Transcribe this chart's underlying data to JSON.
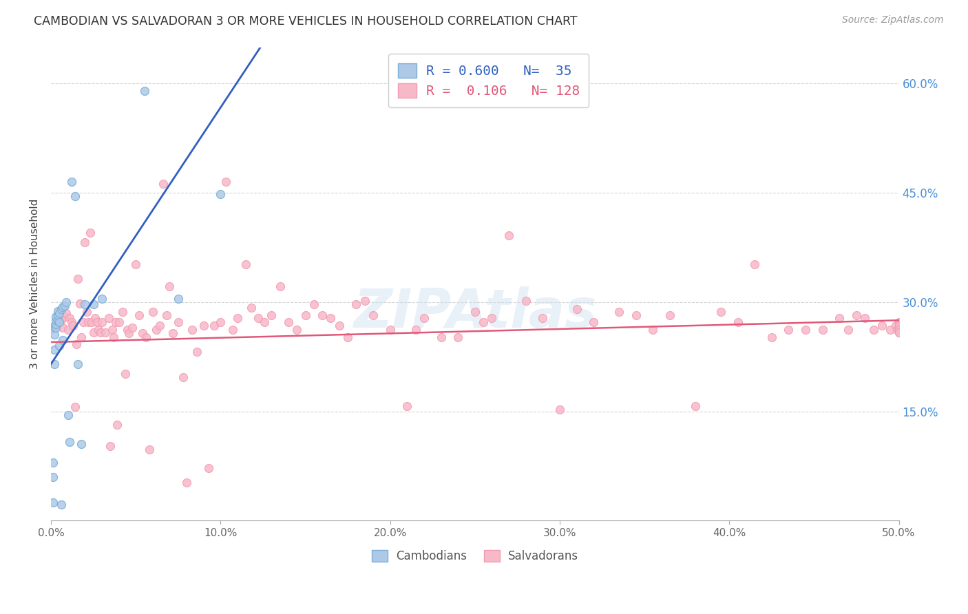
{
  "title": "CAMBODIAN VS SALVADORAN 3 OR MORE VEHICLES IN HOUSEHOLD CORRELATION CHART",
  "source": "Source: ZipAtlas.com",
  "ylabel": "3 or more Vehicles in Household",
  "x_min": 0.0,
  "x_max": 0.5,
  "y_min": 0.0,
  "y_max": 0.65,
  "x_ticks": [
    0.0,
    0.1,
    0.2,
    0.3,
    0.4,
    0.5
  ],
  "x_tick_labels": [
    "0.0%",
    "10.0%",
    "20.0%",
    "30.0%",
    "40.0%",
    "50.0%"
  ],
  "y_ticks": [
    0.15,
    0.3,
    0.45,
    0.6
  ],
  "y_tick_labels": [
    "15.0%",
    "30.0%",
    "45.0%",
    "60.0%"
  ],
  "cambodian_face_color": "#aec9e8",
  "cambodian_edge_color": "#7aaed4",
  "salvadoran_face_color": "#f7b8c8",
  "salvadoran_edge_color": "#f09ab0",
  "cambodian_line_color": "#3060c0",
  "salvadoran_line_color": "#e05878",
  "cambodian_R": 0.6,
  "cambodian_N": 35,
  "salvadoran_R": 0.106,
  "salvadoran_N": 128,
  "watermark": "ZIPAtlas",
  "marker_size": 75,
  "cambodian_x": [
    0.001,
    0.001,
    0.001,
    0.002,
    0.002,
    0.002,
    0.002,
    0.003,
    0.003,
    0.003,
    0.003,
    0.004,
    0.004,
    0.004,
    0.005,
    0.005,
    0.005,
    0.006,
    0.006,
    0.007,
    0.007,
    0.008,
    0.009,
    0.01,
    0.011,
    0.012,
    0.014,
    0.016,
    0.018,
    0.02,
    0.025,
    0.03,
    0.055,
    0.075,
    0.1
  ],
  "cambodian_y": [
    0.025,
    0.06,
    0.08,
    0.215,
    0.235,
    0.255,
    0.265,
    0.265,
    0.27,
    0.275,
    0.28,
    0.275,
    0.282,
    0.288,
    0.24,
    0.272,
    0.285,
    0.022,
    0.29,
    0.248,
    0.293,
    0.295,
    0.3,
    0.145,
    0.108,
    0.465,
    0.445,
    0.215,
    0.105,
    0.297,
    0.297,
    0.305,
    0.59,
    0.305,
    0.448
  ],
  "salvadoran_x": [
    0.002,
    0.004,
    0.006,
    0.007,
    0.008,
    0.009,
    0.01,
    0.011,
    0.012,
    0.013,
    0.014,
    0.015,
    0.016,
    0.017,
    0.018,
    0.019,
    0.02,
    0.021,
    0.022,
    0.023,
    0.024,
    0.025,
    0.026,
    0.027,
    0.028,
    0.029,
    0.03,
    0.032,
    0.034,
    0.035,
    0.036,
    0.037,
    0.038,
    0.039,
    0.04,
    0.042,
    0.044,
    0.045,
    0.046,
    0.048,
    0.05,
    0.052,
    0.054,
    0.056,
    0.058,
    0.06,
    0.062,
    0.064,
    0.066,
    0.068,
    0.07,
    0.072,
    0.075,
    0.078,
    0.08,
    0.083,
    0.086,
    0.09,
    0.093,
    0.096,
    0.1,
    0.103,
    0.107,
    0.11,
    0.115,
    0.118,
    0.122,
    0.126,
    0.13,
    0.135,
    0.14,
    0.145,
    0.15,
    0.155,
    0.16,
    0.165,
    0.17,
    0.175,
    0.18,
    0.185,
    0.19,
    0.2,
    0.21,
    0.215,
    0.22,
    0.23,
    0.24,
    0.25,
    0.255,
    0.26,
    0.27,
    0.28,
    0.29,
    0.3,
    0.31,
    0.32,
    0.335,
    0.345,
    0.355,
    0.365,
    0.38,
    0.395,
    0.405,
    0.415,
    0.425,
    0.435,
    0.445,
    0.455,
    0.465,
    0.47,
    0.475,
    0.48,
    0.485,
    0.49,
    0.495,
    0.498,
    0.499,
    0.5,
    0.5,
    0.5,
    0.5,
    0.5,
    0.5,
    0.5,
    0.5,
    0.5,
    0.5,
    0.5
  ],
  "salvadoran_y": [
    0.268,
    0.272,
    0.275,
    0.265,
    0.28,
    0.285,
    0.262,
    0.278,
    0.272,
    0.268,
    0.156,
    0.242,
    0.332,
    0.298,
    0.252,
    0.272,
    0.382,
    0.287,
    0.272,
    0.395,
    0.272,
    0.258,
    0.278,
    0.272,
    0.262,
    0.258,
    0.272,
    0.258,
    0.278,
    0.102,
    0.262,
    0.252,
    0.272,
    0.132,
    0.272,
    0.287,
    0.202,
    0.262,
    0.257,
    0.265,
    0.352,
    0.282,
    0.257,
    0.252,
    0.098,
    0.287,
    0.262,
    0.268,
    0.462,
    0.282,
    0.322,
    0.257,
    0.272,
    0.197,
    0.052,
    0.262,
    0.232,
    0.268,
    0.072,
    0.268,
    0.272,
    0.465,
    0.262,
    0.278,
    0.352,
    0.292,
    0.278,
    0.272,
    0.282,
    0.322,
    0.272,
    0.262,
    0.282,
    0.297,
    0.282,
    0.278,
    0.268,
    0.252,
    0.297,
    0.302,
    0.282,
    0.262,
    0.157,
    0.262,
    0.278,
    0.252,
    0.252,
    0.287,
    0.272,
    0.278,
    0.392,
    0.302,
    0.278,
    0.152,
    0.29,
    0.272,
    0.287,
    0.282,
    0.262,
    0.282,
    0.157,
    0.287,
    0.272,
    0.352,
    0.252,
    0.262,
    0.262,
    0.262,
    0.278,
    0.262,
    0.282,
    0.278,
    0.262,
    0.268,
    0.262,
    0.268,
    0.262,
    0.272,
    0.268,
    0.262,
    0.258,
    0.262,
    0.268,
    0.262,
    0.258,
    0.268,
    0.262,
    0.258
  ]
}
